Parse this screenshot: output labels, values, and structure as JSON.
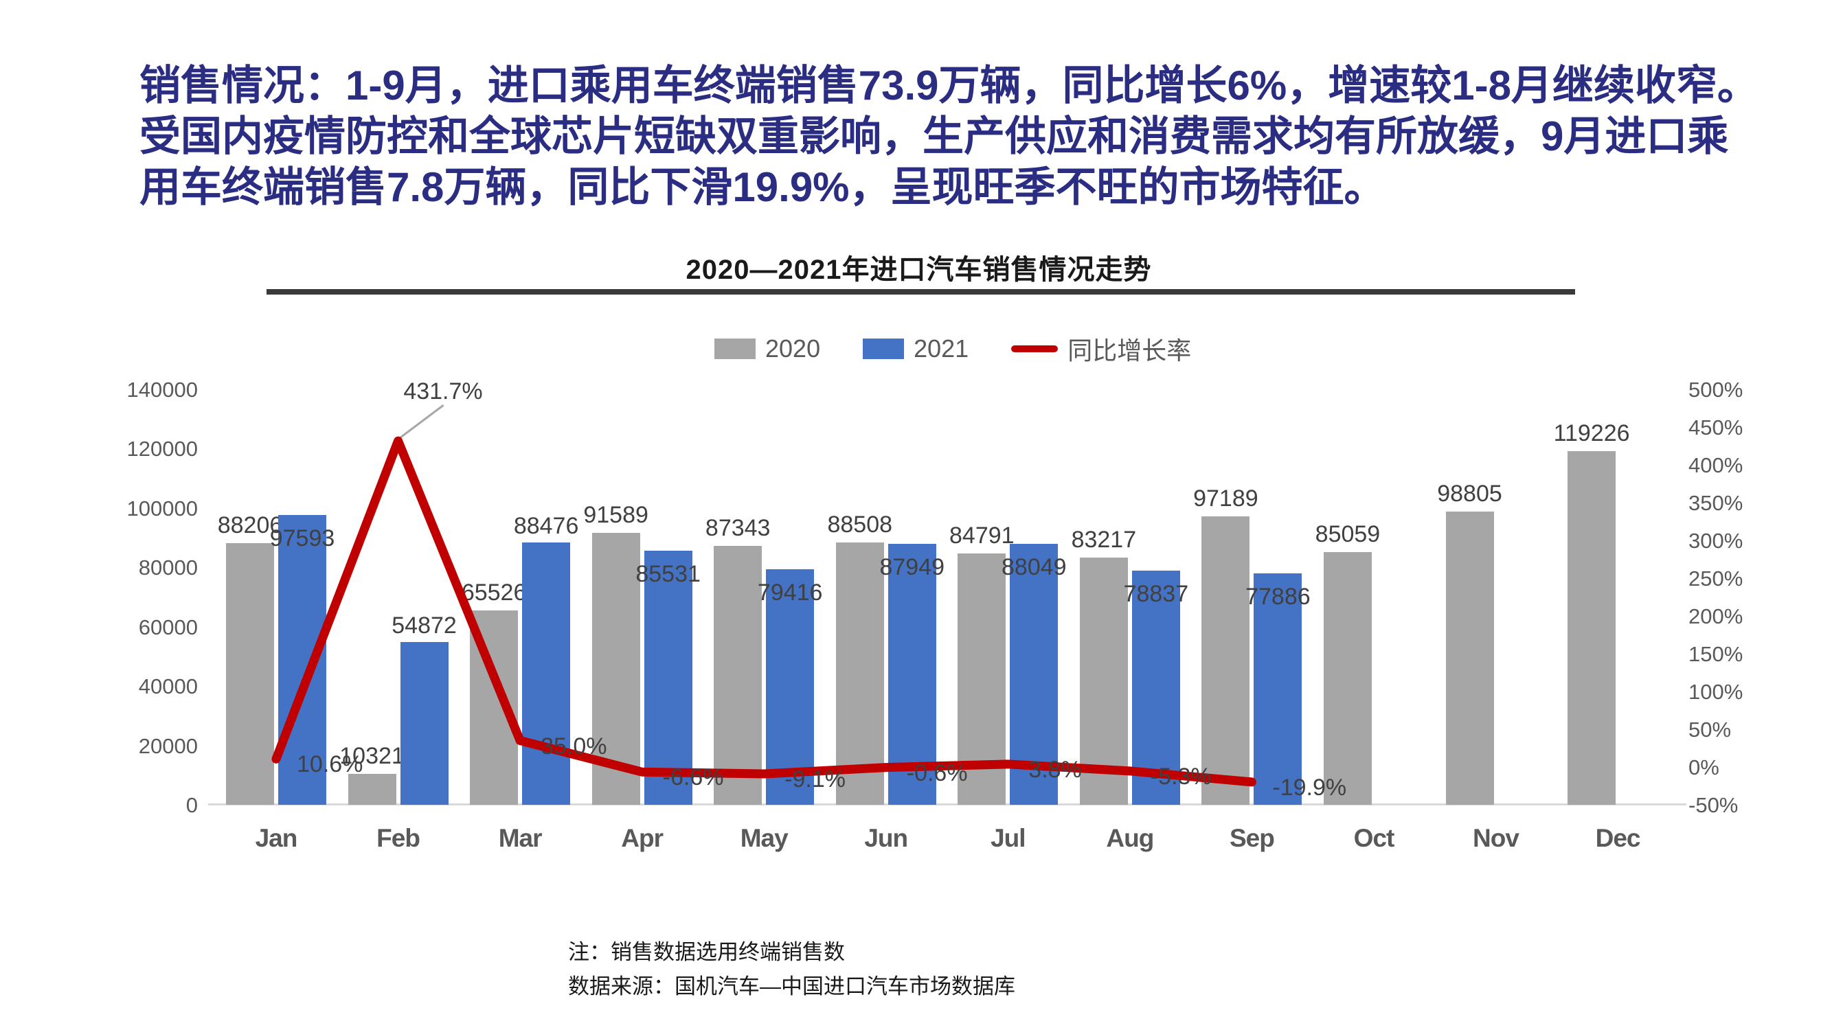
{
  "page": {
    "heading_lines": [
      "销售情况：1-9月，进口乘用车终端销售73.9万辆，同比增长6%，增速较1-8月继续收窄。",
      "受国内疫情防控和全球芯片短缺双重影响，生产供应和消费需求均有所放缓，9月进口乘",
      "用车终端销售7.8万辆，同比下滑19.9%，呈现旺季不旺的市场特征。"
    ]
  },
  "chart": {
    "title": "2020—2021年进口汽车销售情况走势",
    "notes": {
      "line1": "注：销售数据选用终端销售数",
      "line2": "数据来源：国机汽车—中国进口汽车市场数据库"
    }
  },
  "chart_data": {
    "type": "bar",
    "combo": "bar+line",
    "title": "2020—2021年进口汽车销售情况走势",
    "categories": [
      "Jan",
      "Feb",
      "Mar",
      "Apr",
      "May",
      "Jun",
      "Jul",
      "Aug",
      "Sep",
      "Oct",
      "Nov",
      "Dec"
    ],
    "series": [
      {
        "name": "2020",
        "type": "bar",
        "axis": "left",
        "color": "#a6a6a6",
        "values": [
          88206,
          10321,
          65526,
          91589,
          87343,
          88508,
          84791,
          83217,
          97189,
          85059,
          98805,
          119226
        ]
      },
      {
        "name": "2021",
        "type": "bar",
        "axis": "left",
        "color": "#4472c4",
        "values": [
          97593,
          54872,
          88476,
          85531,
          79416,
          87949,
          88049,
          78837,
          77886,
          null,
          null,
          null
        ]
      },
      {
        "name": "同比增长率",
        "type": "line",
        "axis": "right",
        "color": "#c00000",
        "values": [
          10.6,
          431.7,
          35.0,
          -6.6,
          -9.1,
          -0.6,
          3.8,
          -5.3,
          -19.9,
          null,
          null,
          null
        ]
      }
    ],
    "left_axis": {
      "min": 0,
      "max": 140000,
      "step": 20000,
      "unit": ""
    },
    "right_axis": {
      "min": -50,
      "max": 500,
      "step": 50,
      "unit": "%"
    },
    "legend_position": "top",
    "grid": false,
    "callout": {
      "category": "Feb",
      "text": "431.7%"
    },
    "colors": {
      "bar2020": "#a6a6a6",
      "bar2021": "#4472c4",
      "growth_line": "#c00000",
      "baseline": "#d9d9d9",
      "leader": "#a6a6a6"
    }
  }
}
